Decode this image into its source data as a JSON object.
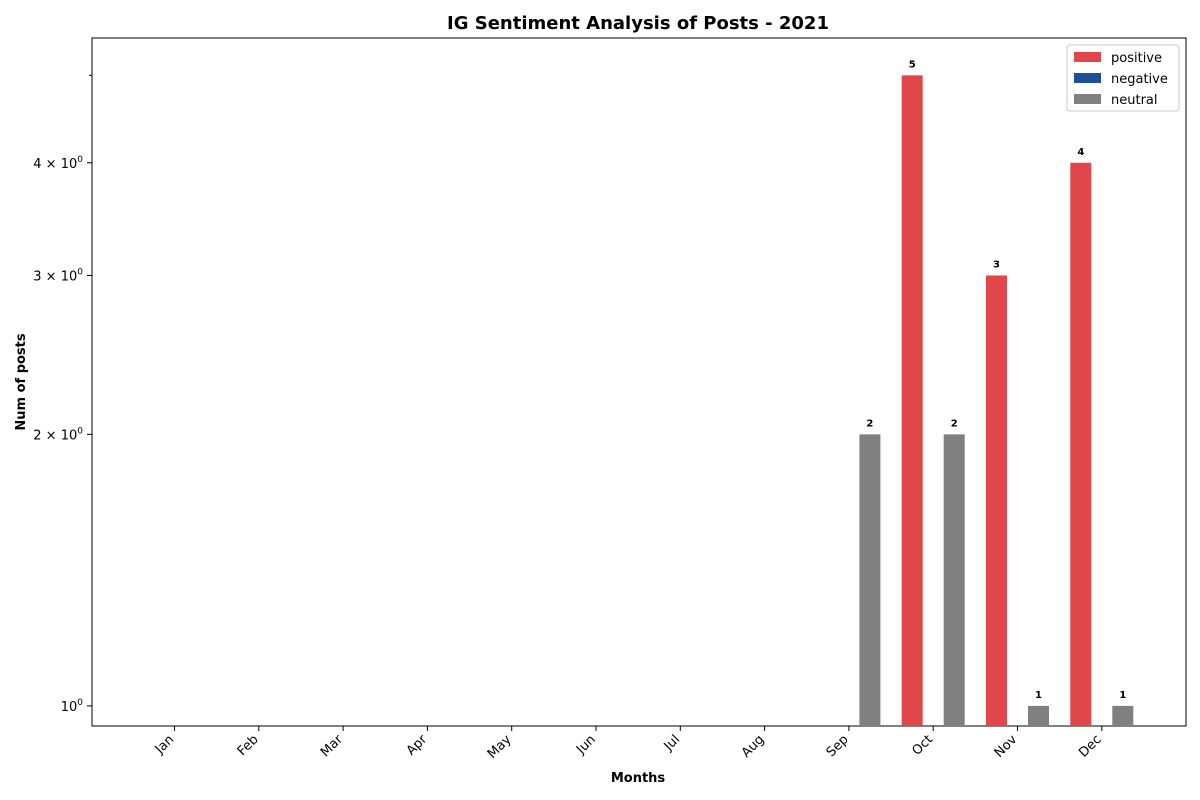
{
  "chart_data": {
    "type": "bar",
    "title": "IG Sentiment Analysis of Posts - 2021",
    "xlabel": "Months",
    "ylabel": "Num of posts",
    "yscale": "log",
    "ylim": [
      0.95,
      5.5
    ],
    "grid": false,
    "legend_position": "top-right",
    "categories": [
      "Jan",
      "Feb",
      "Mar",
      "Apr",
      "May",
      "Jun",
      "Jul",
      "Aug",
      "Sep",
      "Oct",
      "Nov",
      "Dec"
    ],
    "series": [
      {
        "name": "positive",
        "color": "#e0464a",
        "values": [
          0,
          0,
          0,
          0,
          0,
          0,
          0,
          0,
          0,
          5,
          3,
          4
        ]
      },
      {
        "name": "negative",
        "color": "#1f4e9a",
        "values": [
          0,
          0,
          0,
          0,
          0,
          0,
          0,
          0,
          0,
          0,
          0,
          0
        ]
      },
      {
        "name": "neutral",
        "color": "#808080",
        "values": [
          0,
          0,
          0,
          0,
          0,
          0,
          0,
          0,
          2,
          2,
          1,
          1
        ]
      }
    ],
    "y_ticks": [
      {
        "value": 1,
        "base": "10",
        "exp": "0",
        "mantissa": ""
      },
      {
        "value": 2,
        "base": "10",
        "exp": "0",
        "mantissa": "2"
      },
      {
        "value": 3,
        "base": "10",
        "exp": "0",
        "mantissa": "3"
      },
      {
        "value": 4,
        "base": "10",
        "exp": "0",
        "mantissa": "4"
      }
    ],
    "y_minor_ticks": [
      5
    ]
  }
}
